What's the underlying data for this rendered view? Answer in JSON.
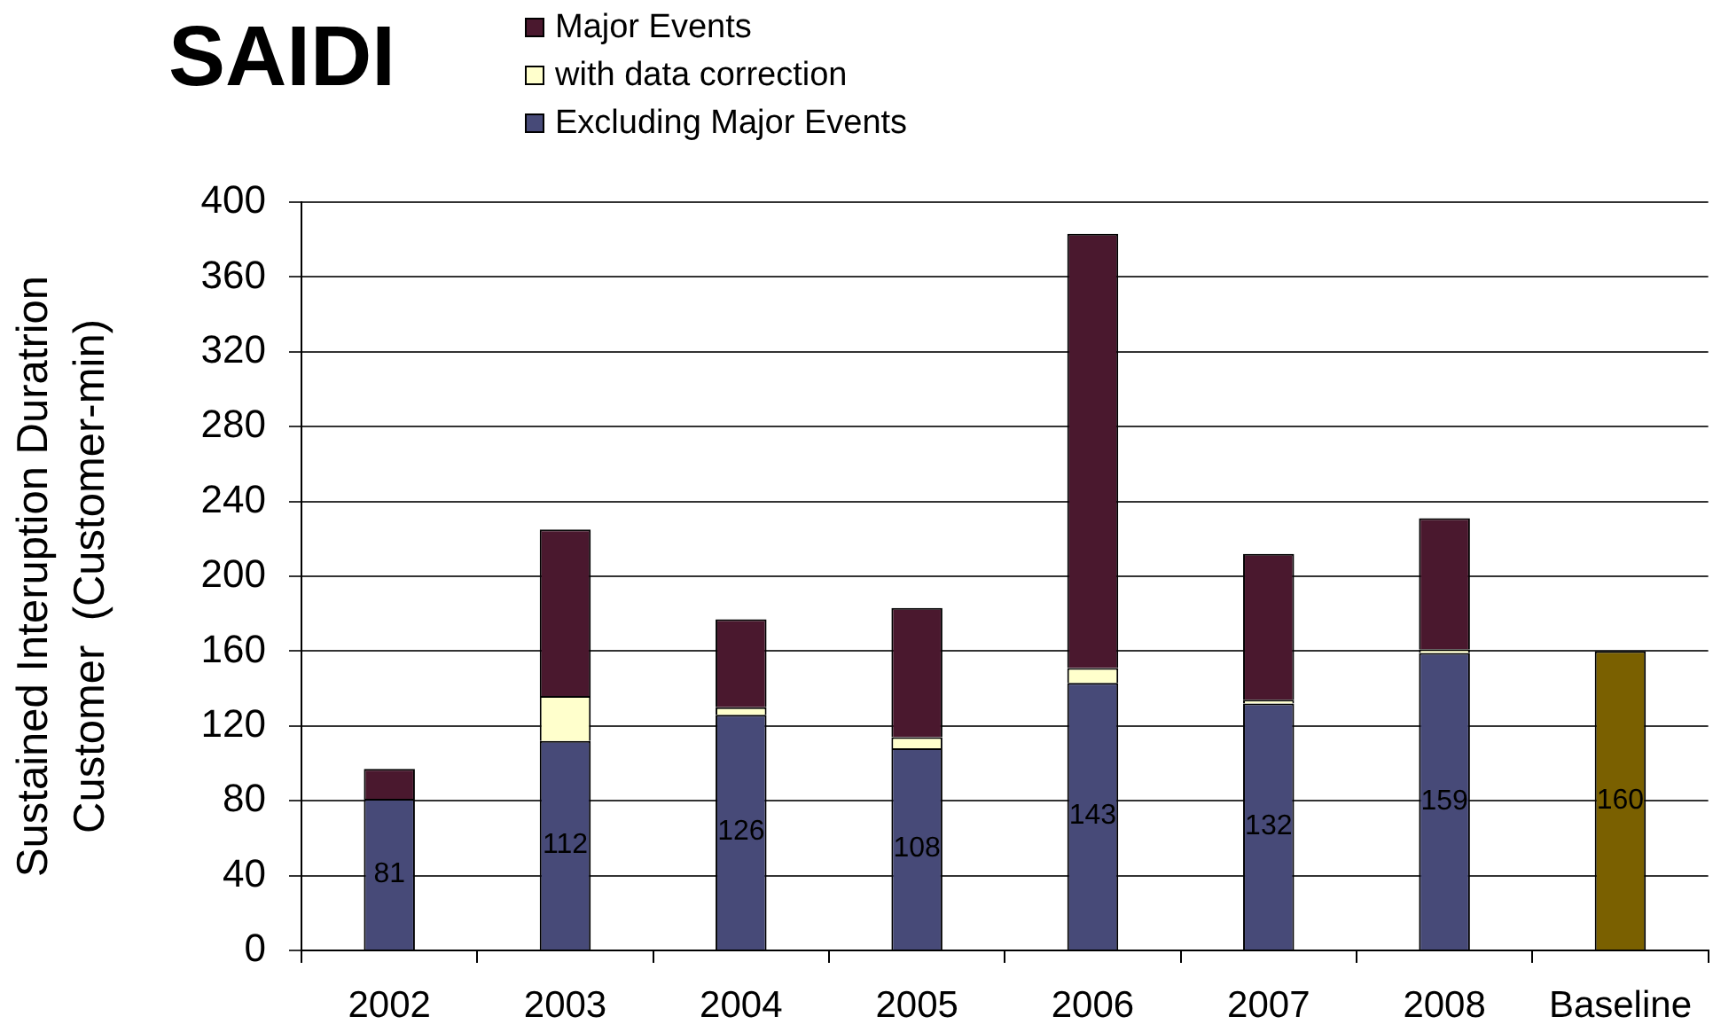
{
  "chart_data": {
    "type": "bar",
    "title": "SAIDI",
    "ylabel": "Sustained Interuption Duratrion\nCustomer  (Customer-min)",
    "categories": [
      "2002",
      "2003",
      "2004",
      "2005",
      "2006",
      "2007",
      "2008",
      "Baseline"
    ],
    "stacked": true,
    "series": [
      {
        "name": "Excluding Major Events",
        "color": "#474a78",
        "colors": [
          "#474a78",
          "#474a78",
          "#474a78",
          "#474a78",
          "#474a78",
          "#474a78",
          "#474a78",
          "#7a6000"
        ],
        "values": [
          81,
          112,
          126,
          108,
          143,
          132,
          159,
          160
        ],
        "value_labels": [
          "81",
          "112",
          "126",
          "108",
          "143",
          "132",
          "159",
          "160"
        ]
      },
      {
        "name": "with data correction",
        "color": "#ffffcc",
        "values": [
          null,
          24,
          4,
          6,
          8,
          2,
          2,
          null
        ]
      },
      {
        "name": "Major Events",
        "color": "#4a182e",
        "values": [
          16,
          89,
          47,
          69,
          232,
          78,
          70,
          null
        ]
      }
    ],
    "ylim": [
      0,
      400
    ],
    "yticks": [
      0,
      40,
      80,
      120,
      160,
      200,
      240,
      280,
      320,
      360,
      400
    ],
    "grid": "y",
    "legend": "top"
  }
}
